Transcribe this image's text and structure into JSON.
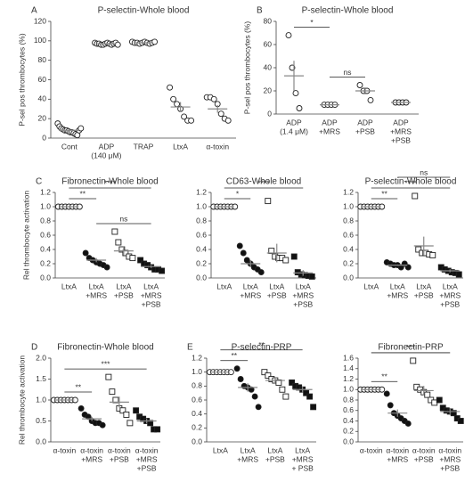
{
  "chart_data": [
    {
      "type": "dot",
      "panel": "A",
      "title": "P-selectin-Whole blood",
      "ylabel": "P-sel pos thrombocytes (%)",
      "categories": [
        [
          "Cont"
        ],
        [
          "ADP",
          "(140 μM)"
        ],
        [
          "TRAP"
        ],
        [
          "LtxA"
        ],
        [
          "α-toxin"
        ]
      ],
      "markers": [
        "open-circle",
        "open-circle",
        "open-circle",
        "open-circle",
        "open-circle"
      ],
      "values": [
        [
          15,
          12,
          10,
          9,
          8,
          8,
          7,
          6,
          6,
          5,
          4,
          3,
          8,
          10
        ],
        [
          98,
          97,
          97,
          96,
          96,
          97,
          98,
          97,
          96,
          97,
          98,
          96
        ],
        [
          99,
          98,
          98,
          97,
          98,
          99,
          98,
          97,
          98,
          99
        ],
        [
          52,
          40,
          35,
          30,
          22,
          18,
          18
        ],
        [
          42,
          42,
          40,
          35,
          25,
          20,
          18
        ]
      ],
      "means": [
        8,
        97,
        98,
        32,
        30
      ],
      "errors": [
        1,
        0.5,
        0.5,
        5,
        4
      ],
      "ylim": [
        0,
        120
      ],
      "yticks": [
        0,
        20,
        40,
        60,
        80,
        100,
        120
      ],
      "brackets": []
    },
    {
      "type": "dot",
      "panel": "B",
      "title": "P-selectin-Whole blood",
      "ylabel": "P-sel pos thrombocytes (%)",
      "categories": [
        [
          "ADP",
          "(1.4 μM)"
        ],
        [
          "ADP",
          "+MRS"
        ],
        [
          "ADP",
          "+PSB"
        ],
        [
          "ADP",
          "+MRS",
          "+PSB"
        ]
      ],
      "markers": [
        "open-circle",
        "open-circle",
        "open-circle",
        "open-circle"
      ],
      "values": [
        [
          68,
          40,
          18,
          5
        ],
        [
          8,
          8,
          8,
          8
        ],
        [
          25,
          20,
          20,
          12
        ],
        [
          10,
          10,
          10,
          10
        ]
      ],
      "means": [
        33,
        8,
        20,
        10
      ],
      "errors": [
        13,
        0.5,
        3,
        0.5
      ],
      "ylim": [
        0,
        80
      ],
      "yticks": [
        0,
        20,
        40,
        60,
        80
      ],
      "brackets": [
        {
          "from": 0,
          "to": 1,
          "label": "*"
        },
        {
          "from": 1,
          "to": 2,
          "label": "ns"
        }
      ]
    },
    {
      "type": "dot",
      "panel": "C",
      "title": "Fibronectin-Whole blood",
      "ylabel": "Rel thrombocyte activation",
      "categories": [
        [
          "LtxA"
        ],
        [
          "LtxA",
          "+MRS"
        ],
        [
          "LtxA",
          "+PSB"
        ],
        [
          "LtxA",
          "+MRS",
          "+PSB"
        ]
      ],
      "markers": [
        "open-circle",
        "circle",
        "open-square",
        "square"
      ],
      "values": [
        [
          1,
          1,
          1,
          1,
          1,
          1,
          1
        ],
        [
          0.35,
          0.28,
          0.25,
          0.22,
          0.2,
          0.18,
          0.15
        ],
        [
          0.65,
          0.5,
          0.4,
          0.35,
          0.3,
          0.28
        ],
        [
          0.25,
          0.2,
          0.18,
          0.15,
          0.12,
          0.12,
          0.1
        ]
      ],
      "means": [
        1,
        0.25,
        0.38,
        0.16
      ],
      "errors": [
        0,
        0.03,
        0.06,
        0.02
      ],
      "ylim": [
        0,
        1.2
      ],
      "yticks": [
        {
          "value": 0,
          "label": "0.0"
        },
        0.2,
        0.4,
        0.6,
        0.8,
        {
          "value": 1,
          "label": "1.0"
        },
        1.2
      ],
      "brackets": [
        {
          "from": 0,
          "to": 1,
          "label": "**"
        },
        {
          "from": 0,
          "to": 3,
          "label": "****"
        },
        {
          "from": 1,
          "to": 3,
          "label": "ns"
        }
      ]
    },
    {
      "type": "dot",
      "title": "CD63-Whole blood",
      "categories": [
        [
          "LtxA"
        ],
        [
          "LtxA",
          "+MRS"
        ],
        [
          "LtxA",
          "+PSB"
        ],
        [
          "LtxA",
          "+MRS",
          "+PSB"
        ]
      ],
      "markers": [
        "open-circle",
        "circle",
        "open-square",
        "square"
      ],
      "values": [
        [
          1,
          1,
          1,
          1,
          1,
          1,
          1
        ],
        [
          0.45,
          0.35,
          0.25,
          0.2,
          0.15,
          0.12,
          0.08
        ],
        [
          1.08,
          0.38,
          0.3,
          0.28,
          0.28,
          0.25
        ],
        [
          0.3,
          0.08,
          0.05,
          0.04,
          0.03,
          0.02
        ]
      ],
      "means": [
        1,
        0.2,
        0.35,
        0.07
      ],
      "errors": [
        0,
        0.05,
        0.13,
        0.04
      ],
      "ylim": [
        0,
        1.2
      ],
      "yticks": [
        {
          "value": 0,
          "label": "0.0"
        },
        0.2,
        0.4,
        0.6,
        0.8,
        {
          "value": 1,
          "label": "1.0"
        },
        1.2
      ],
      "brackets": [
        {
          "from": 0,
          "to": 1,
          "label": "*"
        },
        {
          "from": 0,
          "to": 3,
          "label": "****"
        }
      ]
    },
    {
      "type": "dot",
      "title": "P-selectin-Whole blood",
      "categories": [
        [
          "LtxA"
        ],
        [
          "LtxA",
          "+MRS"
        ],
        [
          "LtxA",
          "+PSB"
        ],
        [
          "LtxA",
          "+MRS",
          "+PSB"
        ]
      ],
      "markers": [
        "open-circle",
        "circle",
        "open-square",
        "square"
      ],
      "values": [
        [
          1,
          1,
          1,
          1,
          1,
          1,
          1
        ],
        [
          0.22,
          0.2,
          0.18,
          0.18,
          0.15,
          0.2,
          0.15
        ],
        [
          1.15,
          0.4,
          0.35,
          0.35,
          0.33,
          0.32
        ],
        [
          0.15,
          0.12,
          0.1,
          0.08,
          0.07,
          0.05
        ]
      ],
      "means": [
        1,
        0.18,
        0.45,
        0.1
      ],
      "errors": [
        0,
        0.01,
        0.13,
        0.02
      ],
      "ylim": [
        0,
        1.2
      ],
      "yticks": [
        {
          "value": 0,
          "label": "0.0"
        },
        0.2,
        0.4,
        0.6,
        0.8,
        {
          "value": 1,
          "label": "1.0"
        },
        1.2
      ],
      "brackets": [
        {
          "from": 0,
          "to": 1,
          "label": "**"
        },
        {
          "from": 0,
          "to": 3,
          "label": "****"
        },
        {
          "from": 1,
          "to": 3,
          "label": "ns"
        }
      ]
    },
    {
      "type": "dot",
      "panel": "D",
      "title": "Fibronectin-Whole blood",
      "ylabel": "Rel thrombocyte activation",
      "categories": [
        [
          "α-toxin"
        ],
        [
          "α-toxin",
          "+MRS"
        ],
        [
          "α-toxin",
          "+PSB"
        ],
        [
          "α-toxin",
          "+MRS",
          "+PSB"
        ]
      ],
      "markers": [
        "open-circle",
        "circle",
        "open-square",
        "square"
      ],
      "values": [
        [
          1,
          1,
          1,
          1,
          1,
          1,
          1
        ],
        [
          0.8,
          0.65,
          0.6,
          0.5,
          0.45,
          0.45,
          0.4
        ],
        [
          1.55,
          1.2,
          1.0,
          0.8,
          0.75,
          0.65,
          0.45
        ],
        [
          0.75,
          0.6,
          0.55,
          0.5,
          0.45,
          0.3,
          0.3
        ]
      ],
      "means": [
        1,
        0.55,
        0.95,
        0.5
      ],
      "errors": [
        0,
        0.05,
        0.13,
        0.06
      ],
      "ylim": [
        0,
        2
      ],
      "yticks": [
        {
          "value": 0,
          "label": "0.0"
        },
        0.5,
        {
          "value": 1,
          "label": "1.0"
        },
        1.5,
        {
          "value": 2,
          "label": "2.0"
        }
      ],
      "brackets": [
        {
          "from": 0,
          "to": 1,
          "label": "**"
        },
        {
          "from": 0,
          "to": 3,
          "label": "***"
        }
      ]
    },
    {
      "type": "dot",
      "panel": "E",
      "title": "P-selectin-PRP",
      "categories": [
        [
          "LtxA"
        ],
        [
          "LtxA",
          "+MRS"
        ],
        [
          "LtxA",
          "+PSB"
        ],
        [
          "LtxA",
          "+MRS",
          "+ PSB"
        ]
      ],
      "markers": [
        "open-circle",
        "circle",
        "open-square",
        "square"
      ],
      "values": [
        [
          1,
          1,
          1,
          1,
          1,
          1,
          1
        ],
        [
          1.05,
          0.9,
          0.8,
          0.78,
          0.75,
          0.65,
          0.5
        ],
        [
          1.0,
          0.95,
          0.9,
          0.88,
          0.85,
          0.75,
          0.65
        ],
        [
          0.85,
          0.8,
          0.78,
          0.75,
          0.7,
          0.65,
          0.5
        ]
      ],
      "means": [
        1,
        0.78,
        0.88,
        0.75
      ],
      "errors": [
        0,
        0.06,
        0.04,
        0.04
      ],
      "ylim": [
        0,
        1.2
      ],
      "yticks": [
        {
          "value": 0,
          "label": "0.0"
        },
        0.2,
        0.4,
        0.6,
        0.8,
        {
          "value": 1,
          "label": "1.0"
        },
        1.2
      ],
      "brackets": [
        {
          "from": 0,
          "to": 1,
          "label": "**"
        },
        {
          "from": 0,
          "to": 3,
          "label": "**"
        }
      ]
    },
    {
      "type": "dot",
      "title": "Fibronectin-PRP",
      "categories": [
        [
          "α-toxin"
        ],
        [
          "α-toxin",
          "+MRS"
        ],
        [
          "α-toxin",
          "+PSB"
        ],
        [
          "α-toxin",
          "+MRS",
          "+PSB"
        ]
      ],
      "markers": [
        "open-circle",
        "circle",
        "open-square",
        "square"
      ],
      "values": [
        [
          1,
          1,
          1,
          1,
          1,
          1,
          1
        ],
        [
          0.92,
          0.7,
          0.55,
          0.5,
          0.45,
          0.4,
          0.35
        ],
        [
          1.55,
          1.05,
          1.0,
          0.95,
          0.9,
          0.8,
          0.75
        ],
        [
          0.8,
          0.65,
          0.6,
          0.58,
          0.55,
          0.45,
          0.4
        ]
      ],
      "means": [
        1,
        0.55,
        0.98,
        0.58
      ],
      "errors": [
        0,
        0.07,
        0.09,
        0.05
      ],
      "ylim": [
        0,
        1.6
      ],
      "yticks": [
        {
          "value": 0,
          "label": "0.0"
        },
        0.2,
        0.4,
        0.6,
        0.8,
        {
          "value": 1,
          "label": "1.0"
        },
        1.2,
        1.4,
        1.6
      ],
      "brackets": [
        {
          "from": 0,
          "to": 1,
          "label": "**"
        },
        {
          "from": 0,
          "to": 3,
          "label": "***"
        }
      ]
    }
  ]
}
